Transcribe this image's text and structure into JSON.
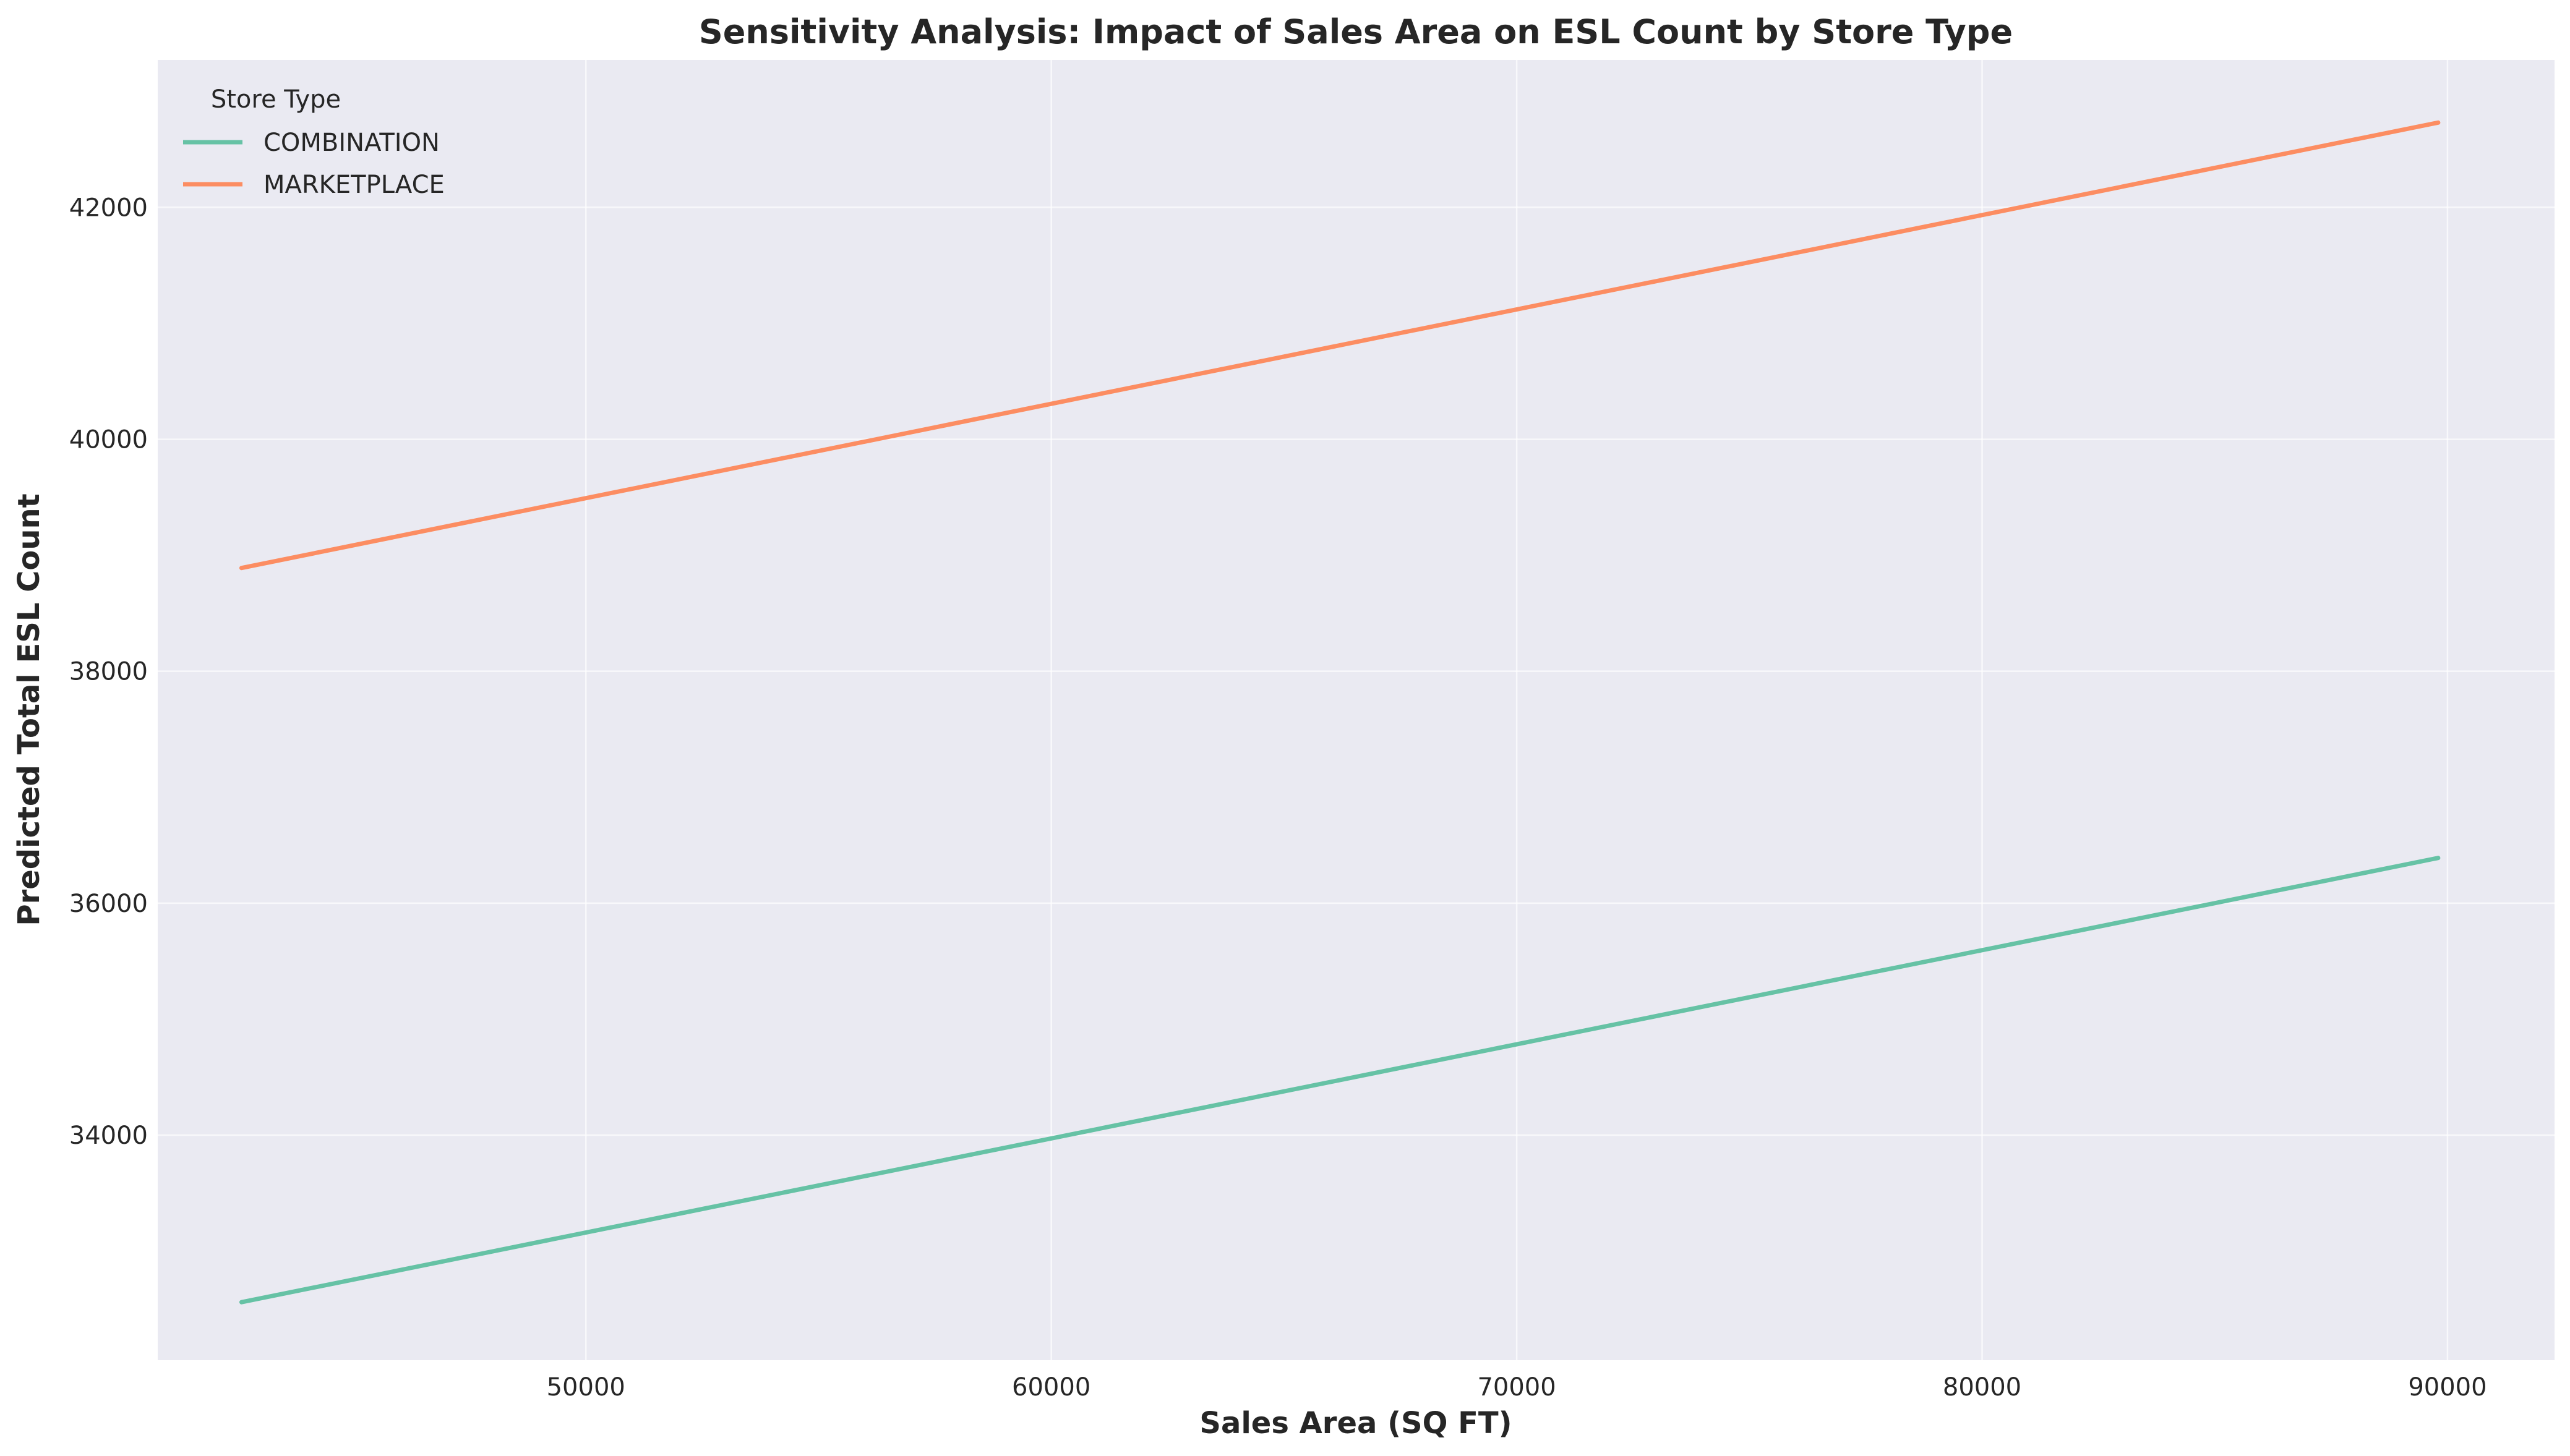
{
  "chart_data": {
    "type": "line",
    "title": "Sensitivity Analysis: Impact of Sales Area on ESL Count by Store Type",
    "xlabel": "Sales Area (SQ FT)",
    "ylabel": "Predicted Total ESL Count",
    "xlim": [
      40800,
      92300
    ],
    "ylim": [
      32060,
      43270
    ],
    "xticks": [
      50000,
      60000,
      70000,
      80000,
      90000
    ],
    "yticks": [
      34000,
      36000,
      38000,
      40000,
      42000
    ],
    "grid": true,
    "legend_title": "Store Type",
    "legend_position": "top-left",
    "series": [
      {
        "name": "COMBINATION",
        "color": "#66c2a5",
        "x": [
          42600,
          89800
        ],
        "y": [
          32560,
          36390
        ]
      },
      {
        "name": "MARKETPLACE",
        "color": "#fc8d62",
        "x": [
          42600,
          89800
        ],
        "y": [
          38890,
          42730
        ]
      }
    ]
  }
}
